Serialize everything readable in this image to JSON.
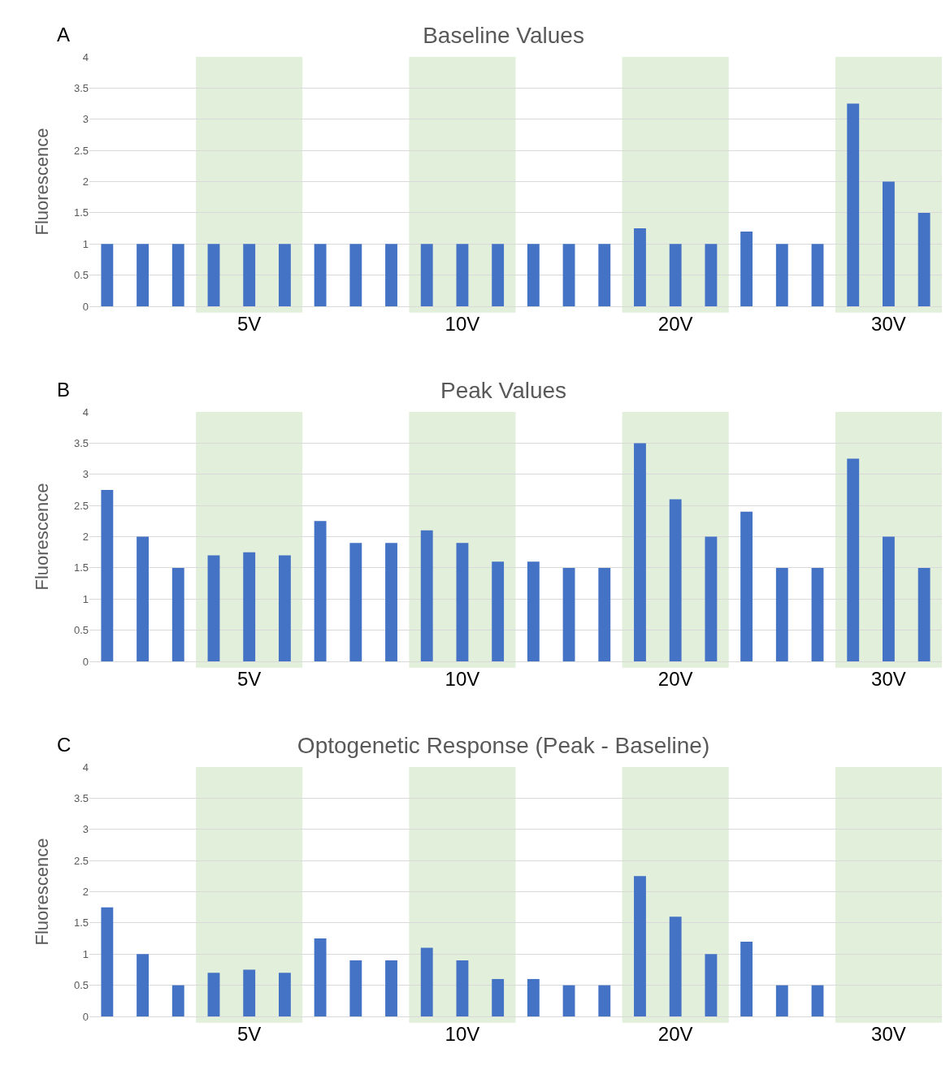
{
  "chart_data": [
    {
      "type": "bar",
      "title": "Baseline Values",
      "ylabel": "Fluorescence",
      "annotations": [
        "A"
      ],
      "categories": [
        null,
        null,
        null,
        null,
        "5V",
        null,
        null,
        null,
        null,
        null,
        "10V",
        null,
        null,
        null,
        null,
        null,
        "20V",
        null,
        null,
        null,
        null,
        null,
        "30V",
        null
      ],
      "series": [
        {
          "color": "#4472c4",
          "values": [
            1,
            1,
            1,
            1,
            1,
            1,
            1,
            1,
            1,
            1,
            1,
            1,
            1,
            1,
            1,
            1.25,
            1,
            1,
            1.2,
            1,
            1,
            3.25,
            2,
            1.5
          ]
        }
      ],
      "ylim": [
        0,
        4
      ],
      "yticks": [
        0,
        0.5,
        1,
        1.5,
        2,
        2.5,
        3,
        3.5,
        4
      ],
      "grid": "y"
    },
    {
      "type": "bar",
      "title": "Peak Values",
      "ylabel": "Fluorescence",
      "annotations": [
        "B"
      ],
      "categories": [
        null,
        null,
        null,
        null,
        "5V",
        null,
        null,
        null,
        null,
        null,
        "10V",
        null,
        null,
        null,
        null,
        null,
        "20V",
        null,
        null,
        null,
        null,
        null,
        "30V",
        null
      ],
      "series": [
        {
          "color": "#4472c4",
          "values": [
            2.75,
            2,
            1.5,
            1.7,
            1.75,
            1.7,
            2.25,
            1.9,
            1.9,
            2.1,
            1.9,
            1.6,
            1.6,
            1.5,
            1.5,
            3.5,
            2.6,
            2,
            2.4,
            1.5,
            1.5,
            3.25,
            2,
            1.5
          ]
        }
      ],
      "ylim": [
        0,
        4
      ],
      "yticks": [
        0,
        0.5,
        1,
        1.5,
        2,
        2.5,
        3,
        3.5,
        4
      ],
      "grid": "y"
    },
    {
      "type": "bar",
      "title": "Optogenetic Response (Peak - Baseline)",
      "ylabel": "Fluorescence",
      "annotations": [
        "C"
      ],
      "categories": [
        null,
        null,
        null,
        null,
        "5V",
        null,
        null,
        null,
        null,
        null,
        "10V",
        null,
        null,
        null,
        null,
        null,
        "20V",
        null,
        null,
        null,
        null,
        null,
        "30V",
        null
      ],
      "series": [
        {
          "color": "#4472c4",
          "values": [
            1.75,
            1,
            0.5,
            0.7,
            0.75,
            0.7,
            1.25,
            0.9,
            0.9,
            1.1,
            0.9,
            0.6,
            0.6,
            0.5,
            0.5,
            2.25,
            1.6,
            1,
            1.2,
            0.5,
            0.5,
            0,
            0,
            0
          ]
        }
      ],
      "ylim": [
        0,
        4
      ],
      "yticks": [
        0,
        0.5,
        1,
        1.5,
        2,
        2.5,
        3,
        3.5,
        4
      ],
      "grid": "y"
    }
  ]
}
